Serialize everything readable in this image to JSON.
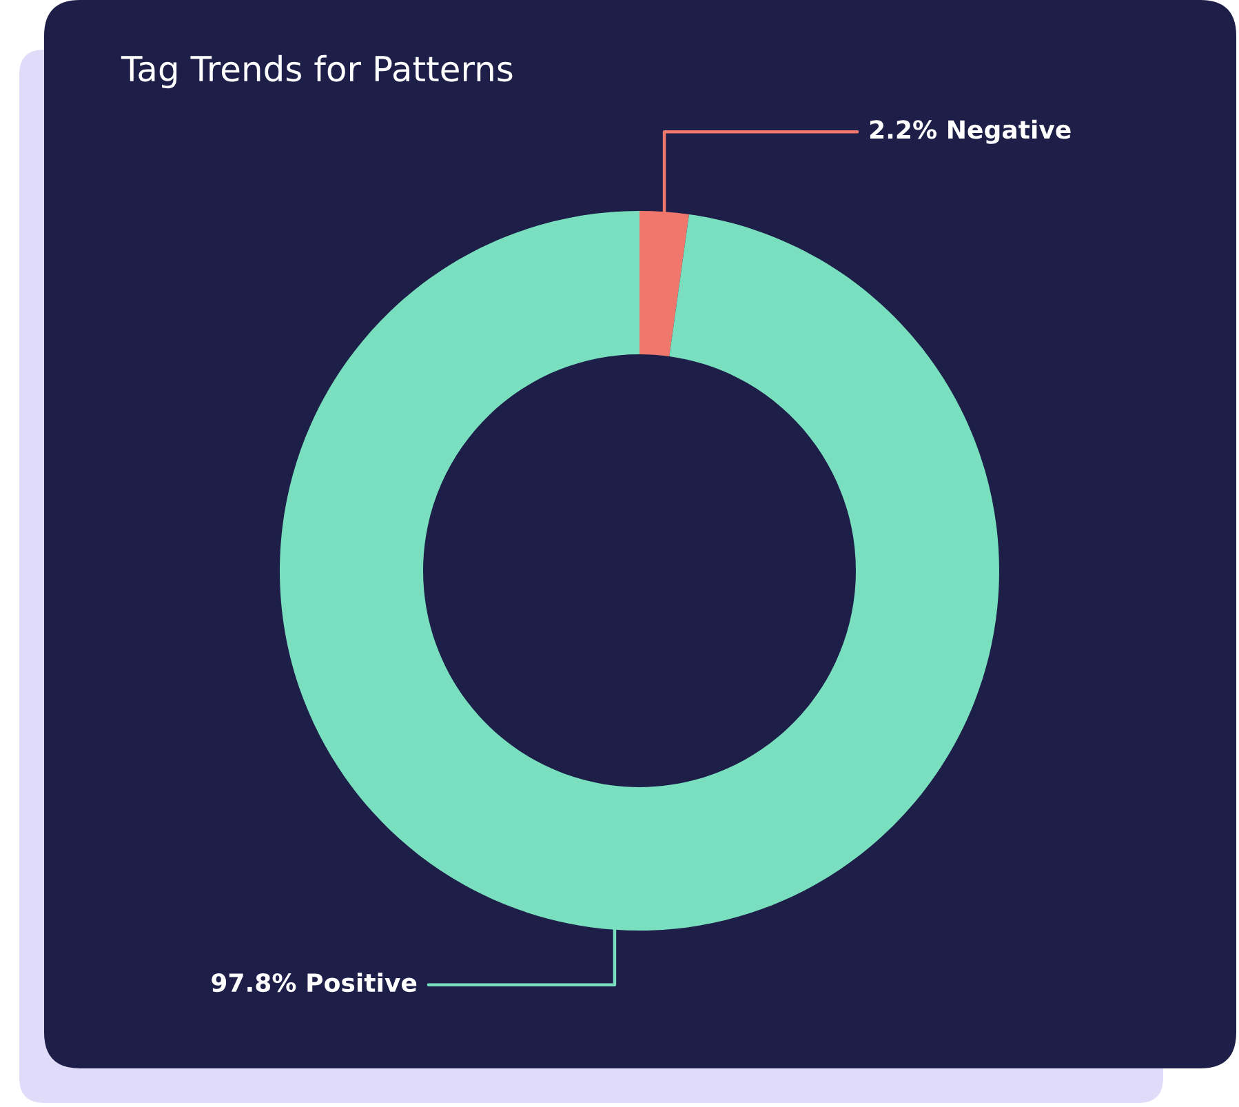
{
  "chart_data": {
    "type": "donut",
    "title": "Tag Trends for Patterns",
    "categories": [
      "Negative",
      "Positive"
    ],
    "values": [
      2.2,
      97.8
    ],
    "value_labels": [
      "2.2%",
      "97.8%"
    ],
    "colors": [
      "#f0776c",
      "#79dfbe"
    ]
  }
}
